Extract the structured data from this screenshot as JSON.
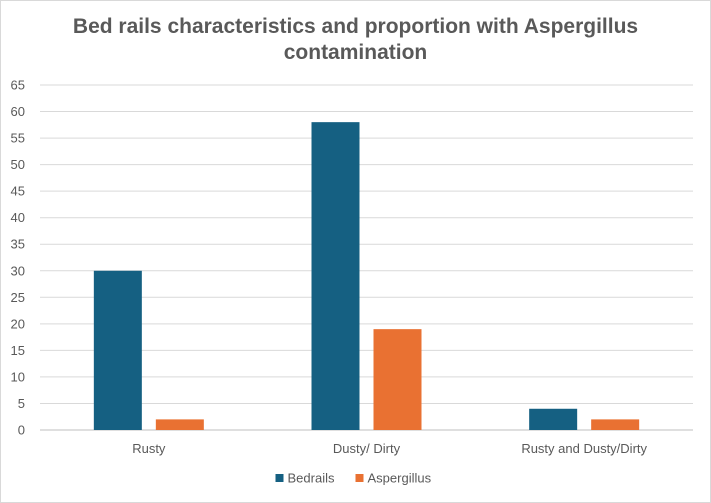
{
  "chart_data": {
    "type": "bar",
    "title_line1": "Bed rails characteristics and proportion with Aspergillus",
    "title_line2": "contamination",
    "categories": [
      "Rusty",
      "Dusty/ Dirty",
      "Rusty and Dusty/Dirty"
    ],
    "series": [
      {
        "name": "Bedrails",
        "values": [
          30,
          58,
          4
        ],
        "color": "#156082"
      },
      {
        "name": "Aspergillus",
        "values": [
          2,
          19,
          2
        ],
        "color": "#E97132"
      }
    ],
    "ylim": [
      0,
      65
    ],
    "yticks": [
      0,
      5,
      10,
      15,
      20,
      25,
      30,
      35,
      40,
      45,
      50,
      55,
      60,
      65
    ],
    "grid": true,
    "legend_position": "bottom"
  }
}
